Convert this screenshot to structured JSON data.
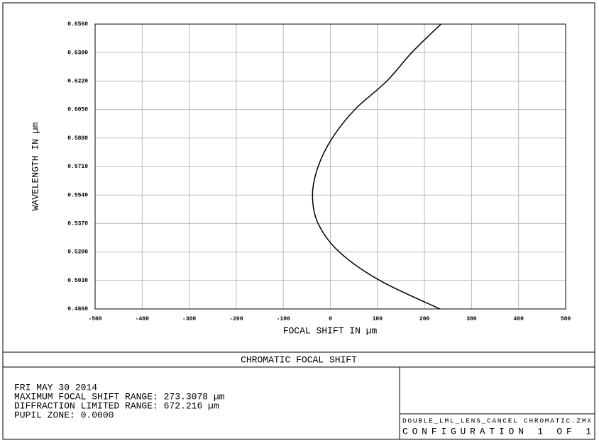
{
  "chart_data": {
    "type": "line",
    "title": "CHROMATIC FOCAL SHIFT",
    "x_label": "FOCAL SHIFT IN µm",
    "y_label": "WAVELENGTH IN µm",
    "x": [
      233,
      105,
      19,
      -26,
      -38,
      -26,
      4,
      52,
      120,
      173,
      235
    ],
    "values": [
      0.486,
      0.503,
      0.52,
      0.537,
      0.554,
      0.571,
      0.588,
      0.605,
      0.622,
      0.639,
      0.656
    ],
    "color": "#000000",
    "xlim": [
      -500,
      500
    ],
    "xticks": [
      -500,
      -400,
      -300,
      -200,
      -100,
      0,
      100,
      200,
      300,
      400,
      500
    ],
    "ylim": [
      0.486,
      0.656
    ],
    "yticks": [
      {
        "value": 0.486,
        "label": "0.4860"
      },
      {
        "value": 0.503,
        "label": "0.5030"
      },
      {
        "value": 0.52,
        "label": "0.5200"
      },
      {
        "value": 0.537,
        "label": "0.5370"
      },
      {
        "value": 0.554,
        "label": "0.5540"
      },
      {
        "value": 0.571,
        "label": "0.5710"
      },
      {
        "value": 0.588,
        "label": "0.5880"
      },
      {
        "value": 0.605,
        "label": "0.6050"
      },
      {
        "value": 0.622,
        "label": "0.6220"
      },
      {
        "value": 0.639,
        "label": "0.6390"
      },
      {
        "value": 0.656,
        "label": "0.6560"
      }
    ],
    "grid": true
  },
  "info_lines": [
    "FRI MAY 30 2014",
    "MAXIMUM FOCAL SHIFT RANGE: 273.3078 µm",
    "DIFFRACTION LIMITED RANGE: 672.216 µm",
    "PUPIL ZONE: 0.0000"
  ],
  "file_name": "DOUBLE_LML_LENS_CANCEL CHROMATIC.ZMX",
  "configuration": "CONFIGURATION 1 OF 1"
}
